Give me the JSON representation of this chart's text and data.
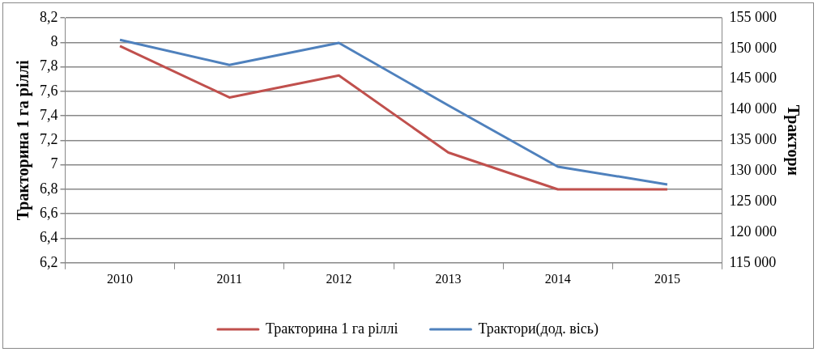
{
  "chart_data": {
    "type": "line",
    "ylabel": "Тракторина 1 га ріллі",
    "y2label": "Трактори",
    "categories": [
      "2010",
      "2011",
      "2012",
      "2013",
      "2014",
      "2015"
    ],
    "series": [
      {
        "name": "Тракторина 1 га ріллі",
        "color": "#c0504d",
        "values": [
          7.97,
          7.55,
          7.73,
          7.1,
          6.8,
          6.8
        ]
      },
      {
        "name": "Трактори(дод. вісь)",
        "color": "#4f81bd",
        "axis": "y2",
        "values": [
          151400,
          147300,
          150900,
          140700,
          130700,
          127800
        ]
      }
    ],
    "ylim": [
      6.2,
      8.2
    ],
    "yticks": [
      {
        "value": 6.2,
        "label": "6,2"
      },
      {
        "value": 6.4,
        "label": "6,4"
      },
      {
        "value": 6.6,
        "label": "6,6"
      },
      {
        "value": 6.8,
        "label": "6,8"
      },
      {
        "value": 7,
        "label": "7"
      },
      {
        "value": 7.2,
        "label": "7,2"
      },
      {
        "value": 7.4,
        "label": "7,4"
      },
      {
        "value": 7.6,
        "label": "7,6"
      },
      {
        "value": 7.8,
        "label": "7,8"
      },
      {
        "value": 8,
        "label": "8"
      },
      {
        "value": 8.2,
        "label": "8,2"
      }
    ],
    "y2lim": [
      115000,
      155000
    ],
    "y2ticks": [
      {
        "value": 115000,
        "label": "115 000"
      },
      {
        "value": 120000,
        "label": "120 000"
      },
      {
        "value": 125000,
        "label": "125 000"
      },
      {
        "value": 130000,
        "label": "130 000"
      },
      {
        "value": 135000,
        "label": "135 000"
      },
      {
        "value": 140000,
        "label": "140 000"
      },
      {
        "value": 145000,
        "label": "145 000"
      },
      {
        "value": 150000,
        "label": "150 000"
      },
      {
        "value": 155000,
        "label": "155 000"
      }
    ],
    "grid": "y",
    "legend": "bottom",
    "marker": "none",
    "line_style": "solid"
  }
}
